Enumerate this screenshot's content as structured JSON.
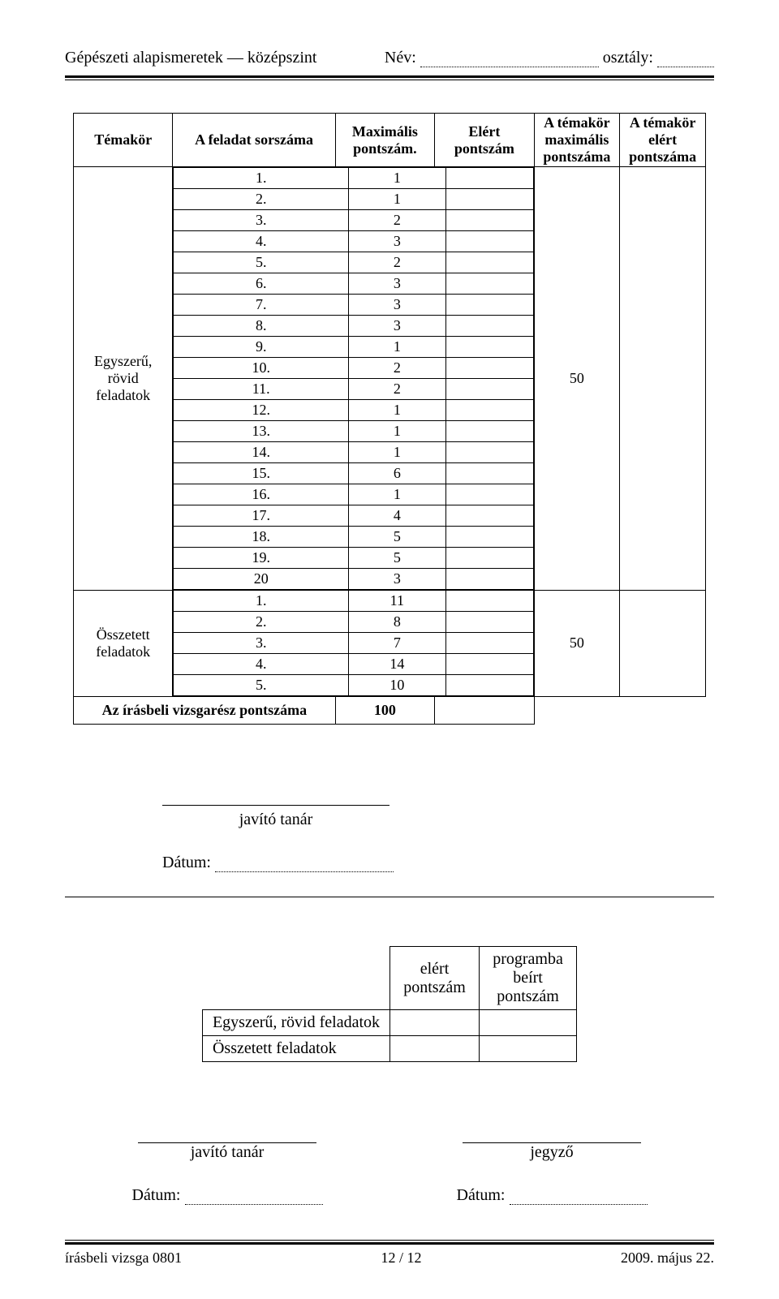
{
  "header": {
    "left": "Gépészeti alapismeretek — középszint",
    "name_label": "Név:",
    "class_label": "osztály:"
  },
  "table": {
    "headers": {
      "topic": "Témakör",
      "task_num": "A feladat sorszáma",
      "max_points": "Maximális pontszám.",
      "achieved_points": "Elért pontszám",
      "topic_max": "A témakör maximális pontszáma",
      "topic_achieved": "A témakör elért pontszáma"
    },
    "group1": {
      "label": "Egyszerű, rövid feladatok",
      "rows": [
        {
          "n": "1.",
          "p": "1"
        },
        {
          "n": "2.",
          "p": "1"
        },
        {
          "n": "3.",
          "p": "2"
        },
        {
          "n": "4.",
          "p": "3"
        },
        {
          "n": "5.",
          "p": "2"
        },
        {
          "n": "6.",
          "p": "3"
        },
        {
          "n": "7.",
          "p": "3"
        },
        {
          "n": "8.",
          "p": "3"
        },
        {
          "n": "9.",
          "p": "1"
        },
        {
          "n": "10.",
          "p": "2"
        },
        {
          "n": "11.",
          "p": "2"
        },
        {
          "n": "12.",
          "p": "1"
        },
        {
          "n": "13.",
          "p": "1"
        },
        {
          "n": "14.",
          "p": "1"
        },
        {
          "n": "15.",
          "p": "6"
        },
        {
          "n": "16.",
          "p": "1"
        },
        {
          "n": "17.",
          "p": "4"
        },
        {
          "n": "18.",
          "p": "5"
        },
        {
          "n": "19.",
          "p": "5"
        },
        {
          "n": "20",
          "p": "3"
        }
      ],
      "total": "50"
    },
    "group2": {
      "label": "Összetett feladatok",
      "rows": [
        {
          "n": "1.",
          "p": "11"
        },
        {
          "n": "2.",
          "p": "8"
        },
        {
          "n": "3.",
          "p": "7"
        },
        {
          "n": "4.",
          "p": "14"
        },
        {
          "n": "5.",
          "p": "10"
        }
      ],
      "total": "50"
    },
    "grand_total": {
      "label": "Az írásbeli vizsgarész pontszáma",
      "value": "100"
    }
  },
  "sig": {
    "teacher": "javító tanár",
    "date": "Dátum:",
    "clerk": "jegyző"
  },
  "small_table": {
    "col_achieved": "elért pontszám",
    "col_entered": "programba beírt pontszám",
    "row1": "Egyszerű, rövid feladatok",
    "row2": "Összetett feladatok"
  },
  "footer": {
    "left": "írásbeli vizsga 0801",
    "center": "12 / 12",
    "right": "2009. május 22."
  }
}
